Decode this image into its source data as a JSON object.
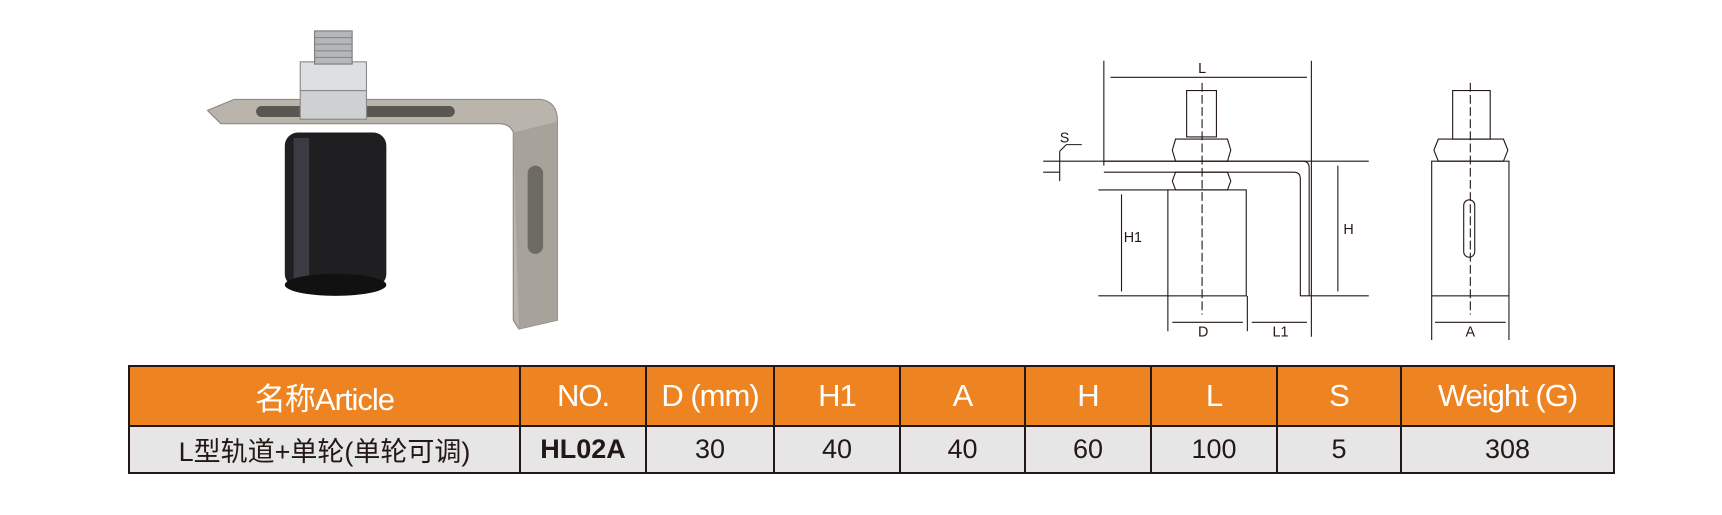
{
  "drawing": {
    "labels": {
      "L": "L",
      "S": "S",
      "H1": "H1",
      "H": "H",
      "D": "D",
      "L1": "L1",
      "A": "A"
    }
  },
  "colors": {
    "header_bg": "#ee8421",
    "row_bg": "#e6e6e7",
    "line": "#231815"
  },
  "table": {
    "headers": [
      "名称Article",
      "NO.",
      "D (mm)",
      "H1",
      "A",
      "H",
      "L",
      "S",
      "Weight (G)"
    ],
    "rows": [
      [
        "L型轨道+单轮(单轮可调)",
        "HL02A",
        "30",
        "40",
        "40",
        "60",
        "100",
        "5",
        "308"
      ]
    ]
  }
}
